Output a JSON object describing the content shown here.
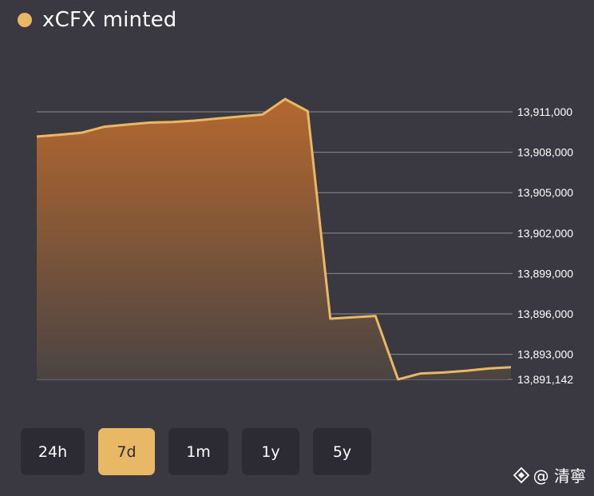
{
  "chart_data": {
    "type": "area",
    "series": [
      {
        "name": "xCFX minted",
        "color": "#e9b865",
        "values": [
          13909160,
          13909300,
          13909450,
          13909900,
          13910050,
          13910200,
          13910250,
          13910350,
          13910500,
          13910650,
          13910800,
          13911950,
          13911050,
          13895650,
          13895750,
          13895850,
          13891142,
          13891580,
          13891650,
          13891780,
          13891950,
          13892050
        ]
      }
    ],
    "y_ticks": [
      "13,911,000",
      "13,908,000",
      "13,905,000",
      "13,902,000",
      "13,899,000",
      "13,896,000",
      "13,893,000",
      "13,891,142"
    ],
    "y_tick_values": [
      13911000,
      13908000,
      13905000,
      13902000,
      13899000,
      13896000,
      13893000,
      13891142
    ],
    "ylim": [
      13891142,
      13911000
    ],
    "y_axis_position": "right",
    "grid": true,
    "legend_position": "top-left"
  },
  "legend": {
    "label": "xCFX minted",
    "color": "#e9b865"
  },
  "range_buttons": [
    {
      "label": "24h",
      "active": false
    },
    {
      "label": "7d",
      "active": true
    },
    {
      "label": "1m",
      "active": false
    },
    {
      "label": "1y",
      "active": false
    },
    {
      "label": "5y",
      "active": false
    }
  ],
  "watermark": {
    "text": "@ 清寧",
    "icon": "diamond-logo-icon"
  },
  "colors": {
    "background": "#3a3941",
    "button_bg": "#2c2b33",
    "accent": "#e9b865",
    "gridline": "#8e8d94"
  }
}
